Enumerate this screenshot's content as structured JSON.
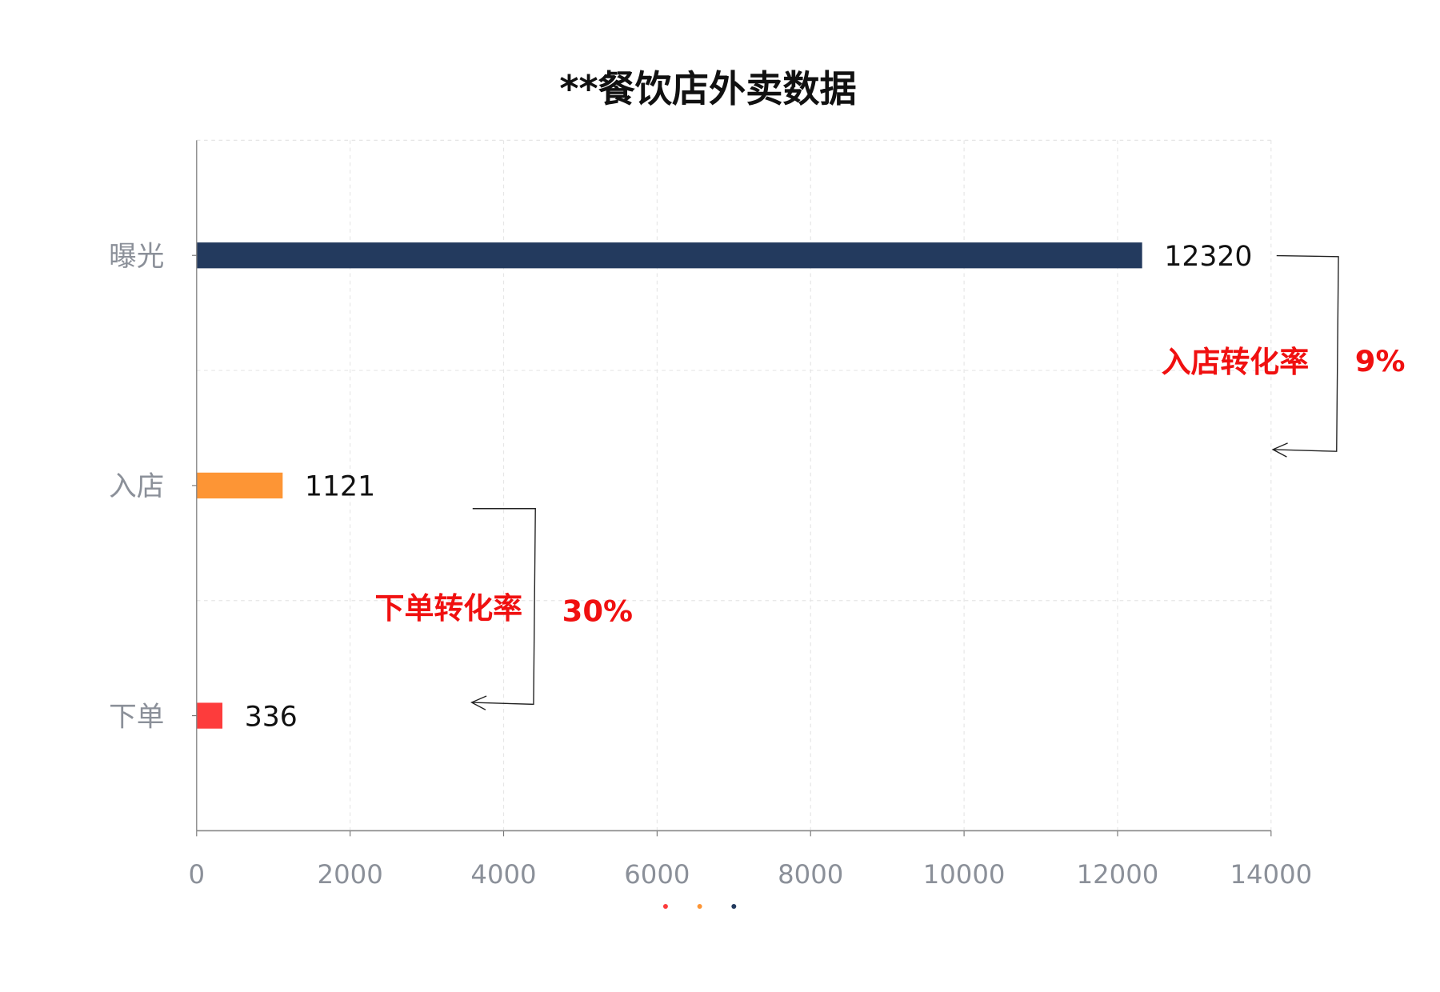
{
  "chart_data": {
    "type": "bar",
    "orientation": "horizontal",
    "title": "**餐饮店外卖数据",
    "categories": [
      "曝光",
      "入店",
      "下单"
    ],
    "values": [
      12320,
      1121,
      336
    ],
    "value_labels": [
      "12320",
      "1121",
      "336"
    ],
    "colors": [
      "#233a5e",
      "#fd9535",
      "#fd3c3c"
    ],
    "xlim": [
      0,
      14000
    ],
    "x_ticks": [
      "0",
      "2000",
      "4000",
      "6000",
      "8000",
      "10000",
      "12000",
      "14000"
    ],
    "grid": true,
    "legend": {
      "placement": "bottom",
      "markers": [
        "#fd3c3c",
        "#fd9535",
        "#233a5e"
      ]
    },
    "annotations": [
      {
        "label": "入店转化率",
        "value": "9%",
        "from": "曝光",
        "to": "入店"
      },
      {
        "label": "下单转化率",
        "value": "30%",
        "from": "入店",
        "to": "下单"
      }
    ]
  }
}
